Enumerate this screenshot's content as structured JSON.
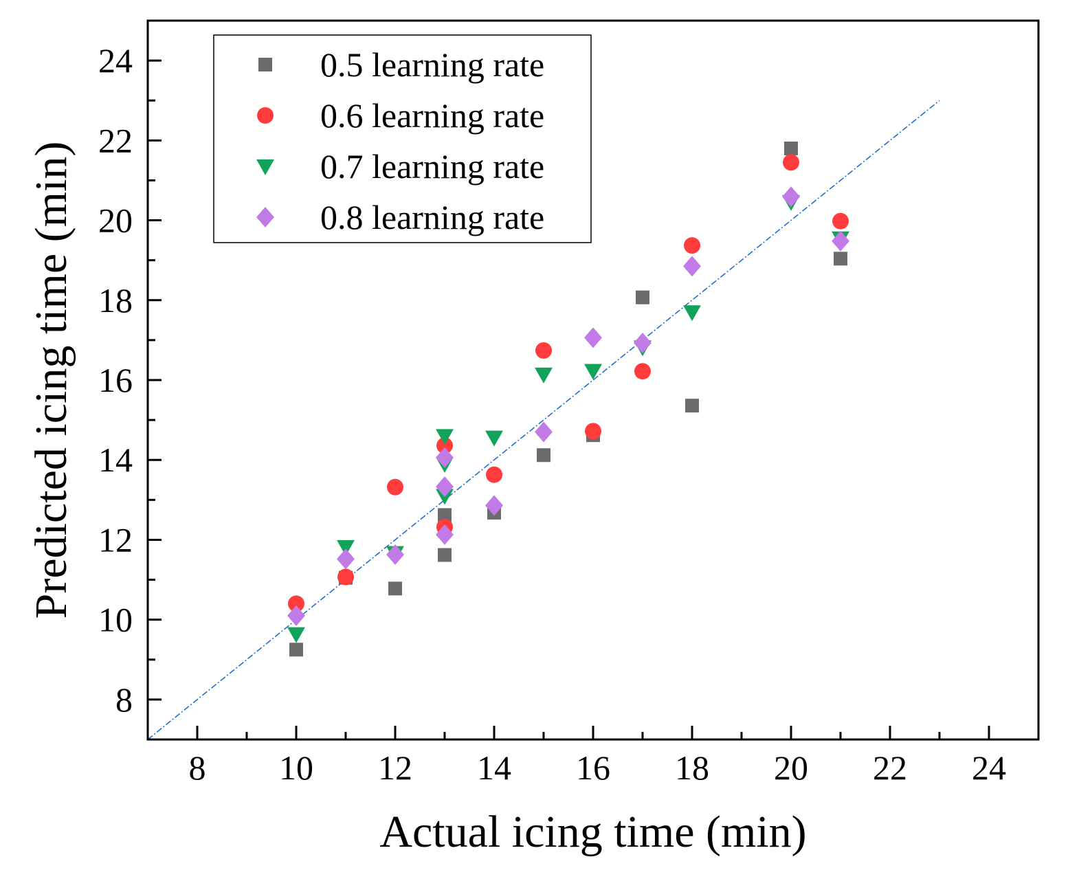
{
  "chart_data": {
    "type": "scatter",
    "title": "",
    "xlabel": "Actual icing time (min)",
    "ylabel": "Predicted icing time (min)",
    "xlim": [
      7,
      25
    ],
    "ylim": [
      7,
      25
    ],
    "xticks": [
      "8",
      "10",
      "12",
      "14",
      "16",
      "18",
      "20",
      "22",
      "24"
    ],
    "yticks": [
      "8",
      "10",
      "12",
      "14",
      "16",
      "18",
      "20",
      "22",
      "24"
    ],
    "grid": false,
    "legend_position": "top-left",
    "reference_line": {
      "style": "dash-dot",
      "color": "#1f6fd1",
      "from": [
        7,
        7
      ],
      "to": [
        23,
        23
      ]
    },
    "series": [
      {
        "name": "0.5 learning rate",
        "marker": "square",
        "color": "#6b6b6b",
        "points": [
          [
            10,
            9.25
          ],
          [
            11,
            11.05
          ],
          [
            12,
            10.78
          ],
          [
            13,
            11.62
          ],
          [
            13,
            12.62
          ],
          [
            14,
            12.68
          ],
          [
            15,
            14.12
          ],
          [
            16,
            14.62
          ],
          [
            17,
            18.07
          ],
          [
            18,
            15.36
          ],
          [
            20,
            21.8
          ],
          [
            21,
            19.04
          ]
        ]
      },
      {
        "name": "0.6 learning rate",
        "marker": "circle",
        "color": "#ff3b3b",
        "points": [
          [
            10,
            10.4
          ],
          [
            11,
            11.07
          ],
          [
            12,
            13.32
          ],
          [
            13,
            12.32
          ],
          [
            13,
            14.36
          ],
          [
            14,
            13.63
          ],
          [
            15,
            16.74
          ],
          [
            16,
            14.72
          ],
          [
            17,
            16.22
          ],
          [
            18,
            19.37
          ],
          [
            20,
            21.45
          ],
          [
            21,
            19.98
          ]
        ]
      },
      {
        "name": "0.7 learning rate",
        "marker": "triangle-down",
        "color": "#12a35a",
        "points": [
          [
            10,
            9.64
          ],
          [
            11,
            11.82
          ],
          [
            12,
            11.67
          ],
          [
            13,
            13.1
          ],
          [
            13,
            13.9
          ],
          [
            13,
            14.6
          ],
          [
            14,
            14.56
          ],
          [
            15,
            16.14
          ],
          [
            16,
            16.23
          ],
          [
            17,
            16.82
          ],
          [
            18,
            17.7
          ],
          [
            20,
            20.46
          ],
          [
            21,
            19.55
          ]
        ]
      },
      {
        "name": "0.8 learning rate",
        "marker": "diamond",
        "color": "#c27be6",
        "points": [
          [
            10,
            10.1
          ],
          [
            11,
            11.52
          ],
          [
            12,
            11.63
          ],
          [
            13,
            12.13
          ],
          [
            13,
            13.33
          ],
          [
            13,
            14.06
          ],
          [
            14,
            12.86
          ],
          [
            15,
            14.7
          ],
          [
            16,
            17.06
          ],
          [
            17,
            16.93
          ],
          [
            18,
            18.85
          ],
          [
            20,
            20.59
          ],
          [
            21,
            19.48
          ]
        ]
      }
    ]
  }
}
